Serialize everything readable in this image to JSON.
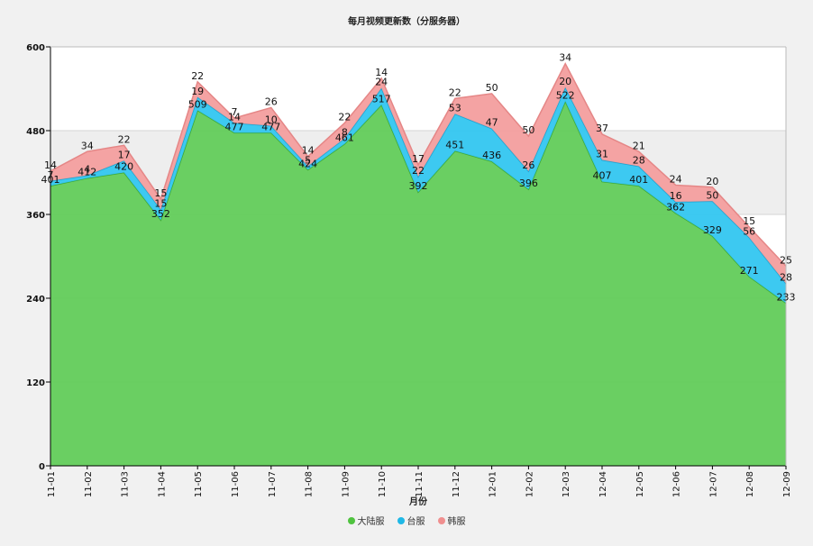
{
  "chart_data": {
    "type": "area",
    "stacked": true,
    "title": "每月视频更新数（分服务器）",
    "xlabel": "月份",
    "ylabel": "",
    "ylim": [
      0,
      600
    ],
    "yticks": [
      0,
      120,
      240,
      360,
      480,
      600
    ],
    "categories": [
      "11-01",
      "11-02",
      "11-03",
      "11-04",
      "11-05",
      "11-06",
      "11-07",
      "11-08",
      "11-09",
      "11-10",
      "11-11",
      "11-12",
      "12-01",
      "12-02",
      "12-03",
      "12-04",
      "12-05",
      "12-06",
      "12-07",
      "12-08",
      "12-09"
    ],
    "series": [
      {
        "name": "大陆服",
        "color": "#62cc5a",
        "values": [
          401,
          412,
          420,
          352,
          509,
          477,
          477,
          424,
          461,
          517,
          392,
          451,
          436,
          396,
          522,
          407,
          401,
          362,
          329,
          271,
          233
        ]
      },
      {
        "name": "台服",
        "color": "#33c6f0",
        "values": [
          7,
          4,
          17,
          15,
          19,
          14,
          10,
          5,
          8,
          24,
          22,
          53,
          47,
          26,
          20,
          31,
          28,
          16,
          50,
          56,
          28
        ]
      },
      {
        "name": "韩服",
        "color": "#f39e9e",
        "values": [
          14,
          34,
          22,
          15,
          22,
          7,
          26,
          14,
          22,
          14,
          17,
          22,
          50,
          50,
          34,
          37,
          21,
          24,
          20,
          15,
          25
        ]
      }
    ],
    "grid": true,
    "legend_position": "bottom-center"
  }
}
